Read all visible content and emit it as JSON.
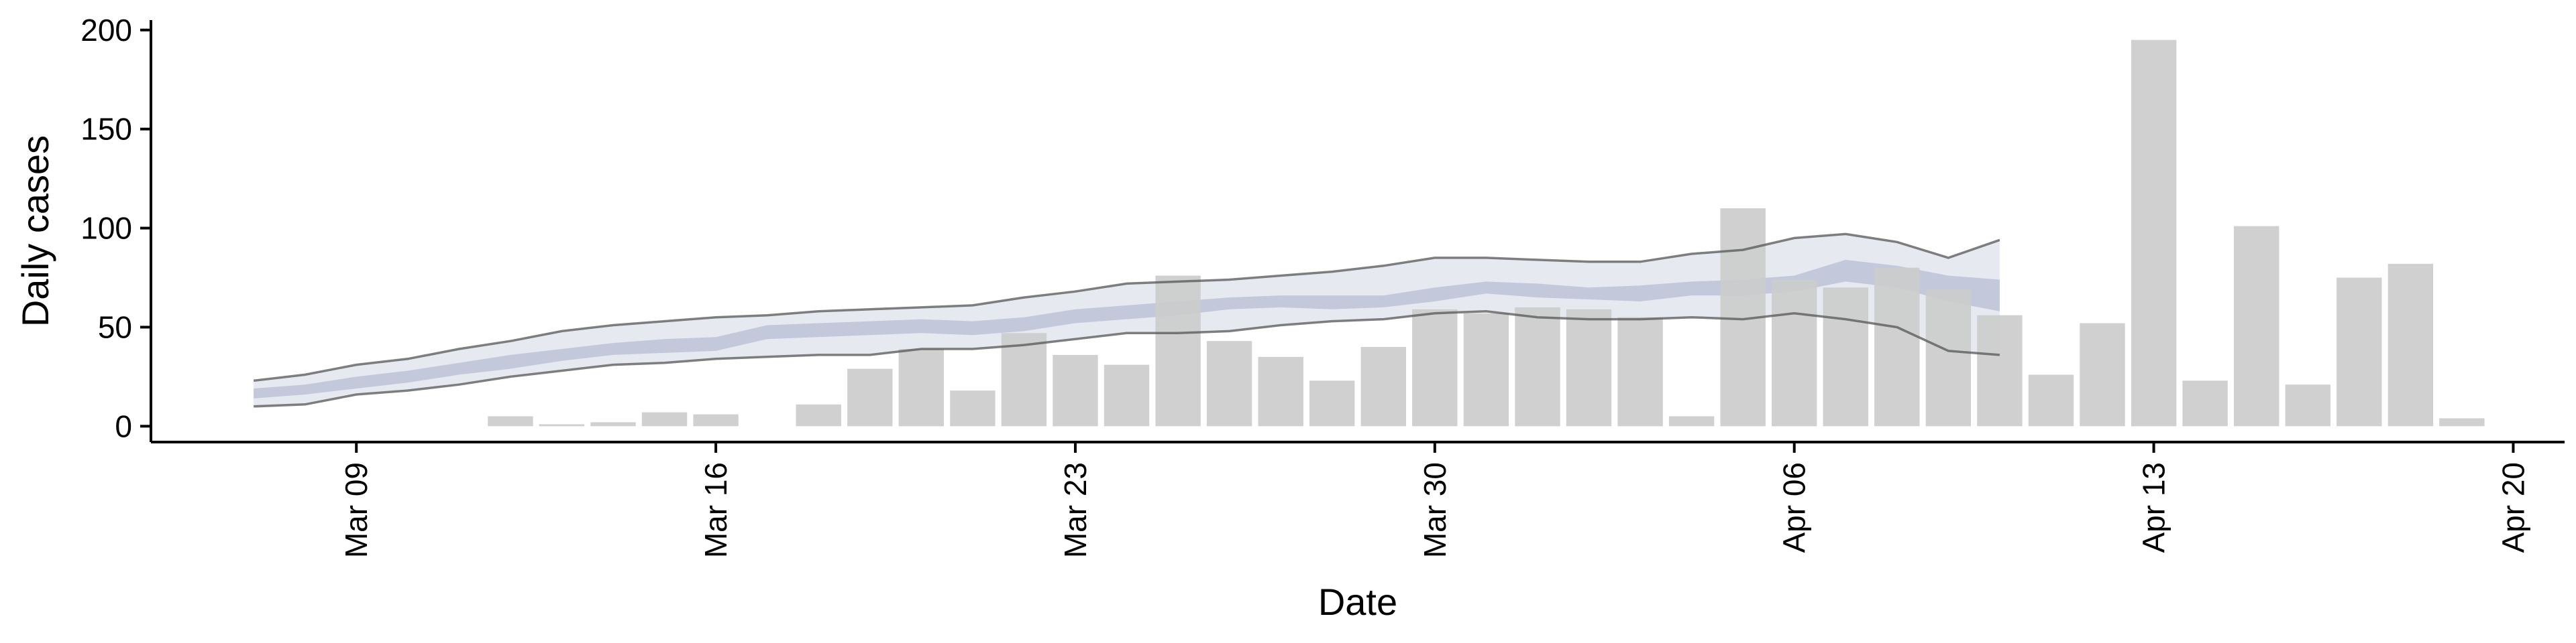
{
  "chart_data": {
    "type": "bar",
    "title": "",
    "xlabel": "Date",
    "ylabel": "Daily cases",
    "ylim": [
      -8,
      205
    ],
    "xlim": [
      "2020-03-05",
      "2020-04-21"
    ],
    "x_ticks": [
      "2020-03-09",
      "2020-03-16",
      "2020-03-23",
      "2020-03-30",
      "2020-04-06",
      "2020-04-13",
      "2020-04-20"
    ],
    "x_tick_labels": [
      "Mar 09",
      "Mar 16",
      "Mar 23",
      "Mar 30",
      "Apr 06",
      "Apr 13",
      "Apr 20"
    ],
    "y_ticks": [
      0,
      50,
      100,
      150,
      200
    ],
    "y_tick_labels": [
      "0",
      "50",
      "100",
      "150",
      "200"
    ],
    "grid": false,
    "colors": {
      "bars": "#cccccc",
      "outer_band": "#dfe1ec",
      "inner_band": "#bcc3d6",
      "band_outline": "#555555",
      "axes": "#000000"
    },
    "bars": {
      "dates": [
        "2020-03-12",
        "2020-03-13",
        "2020-03-14",
        "2020-03-15",
        "2020-03-16",
        "2020-03-18",
        "2020-03-19",
        "2020-03-20",
        "2020-03-21",
        "2020-03-22",
        "2020-03-23",
        "2020-03-24",
        "2020-03-25",
        "2020-03-26",
        "2020-03-27",
        "2020-03-28",
        "2020-03-29",
        "2020-03-30",
        "2020-03-31",
        "2020-04-01",
        "2020-04-02",
        "2020-04-03",
        "2020-04-04",
        "2020-04-05",
        "2020-04-06",
        "2020-04-07",
        "2020-04-08",
        "2020-04-09",
        "2020-04-10",
        "2020-04-11",
        "2020-04-12",
        "2020-04-13",
        "2020-04-14",
        "2020-04-15",
        "2020-04-16",
        "2020-04-17",
        "2020-04-18",
        "2020-04-19"
      ],
      "values": [
        5,
        1,
        2,
        7,
        6,
        11,
        29,
        39,
        18,
        47,
        36,
        31,
        76,
        43,
        35,
        23,
        40,
        59,
        57,
        60,
        59,
        55,
        5,
        110,
        74,
        70,
        80,
        69,
        56,
        26,
        52,
        195,
        23,
        101,
        21,
        75,
        82,
        4
      ]
    },
    "nowcast": {
      "dates": [
        "2020-03-07",
        "2020-03-08",
        "2020-03-09",
        "2020-03-10",
        "2020-03-11",
        "2020-03-12",
        "2020-03-13",
        "2020-03-14",
        "2020-03-15",
        "2020-03-16",
        "2020-03-17",
        "2020-03-18",
        "2020-03-19",
        "2020-03-20",
        "2020-03-21",
        "2020-03-22",
        "2020-03-23",
        "2020-03-24",
        "2020-03-25",
        "2020-03-26",
        "2020-03-27",
        "2020-03-28",
        "2020-03-29",
        "2020-03-30",
        "2020-03-31",
        "2020-04-01",
        "2020-04-02",
        "2020-04-03",
        "2020-04-04",
        "2020-04-05",
        "2020-04-06",
        "2020-04-07",
        "2020-04-08",
        "2020-04-09",
        "2020-04-10"
      ],
      "lower_90": [
        10,
        11,
        16,
        18,
        21,
        25,
        28,
        31,
        32,
        34,
        35,
        36,
        36,
        39,
        39,
        41,
        44,
        47,
        47,
        48,
        51,
        53,
        54,
        57,
        58,
        55,
        54,
        54,
        55,
        54,
        57,
        54,
        50,
        38,
        36
      ],
      "upper_90": [
        23,
        26,
        31,
        34,
        39,
        43,
        48,
        51,
        53,
        55,
        56,
        58,
        59,
        60,
        61,
        65,
        68,
        72,
        73,
        74,
        76,
        78,
        81,
        85,
        85,
        84,
        83,
        83,
        87,
        89,
        95,
        97,
        93,
        85,
        94
      ],
      "lower_50": [
        14,
        16,
        19,
        22,
        26,
        29,
        33,
        36,
        37,
        38,
        44,
        45,
        46,
        47,
        46,
        48,
        52,
        54,
        56,
        59,
        60,
        59,
        60,
        63,
        67,
        65,
        64,
        63,
        66,
        66,
        68,
        73,
        70,
        63,
        58
      ],
      "upper_50": [
        19,
        21,
        25,
        28,
        32,
        36,
        39,
        42,
        44,
        45,
        51,
        52,
        53,
        54,
        53,
        55,
        59,
        61,
        63,
        65,
        66,
        66,
        66,
        70,
        73,
        72,
        70,
        71,
        73,
        74,
        76,
        84,
        81,
        76,
        74
      ]
    }
  }
}
